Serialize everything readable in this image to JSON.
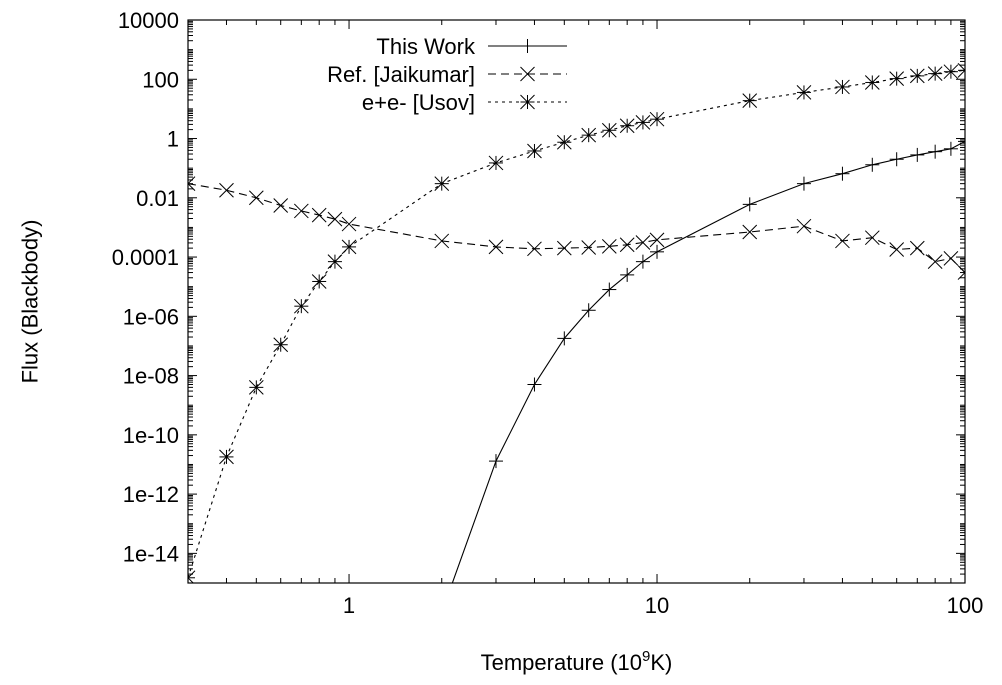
{
  "chart_data": {
    "type": "line",
    "xscale": "log",
    "yscale": "log",
    "xlim": [
      0.3,
      100
    ],
    "ylim": [
      1e-15,
      10000
    ],
    "xlabel": {
      "prefix": "Temperature (10",
      "sup": "9",
      "suffix": "K)"
    },
    "ylabel": "Flux (Blackbody)",
    "grid": false,
    "legend_position": "top-left",
    "x_ticks": [
      {
        "value": 1,
        "label": "1"
      },
      {
        "value": 10,
        "label": "10"
      },
      {
        "value": 100,
        "label": "100"
      }
    ],
    "y_ticks": [
      {
        "value": 10000,
        "label": "10000"
      },
      {
        "value": 100,
        "label": "100"
      },
      {
        "value": 1,
        "label": "1"
      },
      {
        "value": 0.01,
        "label": "0.01"
      },
      {
        "value": 0.0001,
        "label": "0.0001"
      },
      {
        "value": 1e-06,
        "label": "1e-06"
      },
      {
        "value": 1e-08,
        "label": "1e-08"
      },
      {
        "value": 1e-10,
        "label": "1e-10"
      },
      {
        "value": 1e-12,
        "label": "1e-12"
      },
      {
        "value": 1e-14,
        "label": "1e-14"
      }
    ],
    "series": [
      {
        "name": "This Work",
        "marker": "plus",
        "dash": "solid",
        "x": [
          2,
          3,
          4,
          5,
          6,
          7,
          8,
          9,
          10,
          20,
          30,
          40,
          50,
          60,
          70,
          80,
          90,
          100
        ],
        "y": [
          1e-16,
          1.3e-11,
          5e-09,
          1.8e-07,
          1.6e-06,
          8e-06,
          2.5e-05,
          7e-05,
          0.00015,
          0.006,
          0.03,
          0.065,
          0.13,
          0.2,
          0.28,
          0.36,
          0.45,
          0.8
        ]
      },
      {
        "name": "Ref. [Jaikumar]",
        "marker": "cross",
        "dash": "dashed",
        "x": [
          0.3,
          0.4,
          0.5,
          0.6,
          0.7,
          0.8,
          0.9,
          1,
          2,
          3,
          4,
          5,
          6,
          7,
          8,
          9,
          10,
          20,
          30,
          40,
          50,
          60,
          70,
          80,
          90,
          100
        ],
        "y": [
          0.03,
          0.018,
          0.01,
          0.0055,
          0.0036,
          0.0026,
          0.0019,
          0.0013,
          0.00035,
          0.00022,
          0.00019,
          0.0002,
          0.00021,
          0.00023,
          0.00026,
          0.00031,
          0.00038,
          0.0007,
          0.0011,
          0.00035,
          0.00045,
          0.00018,
          0.0002,
          7e-05,
          9e-05,
          3e-05
        ]
      },
      {
        "name": "e+e- [Usov]",
        "marker": "star",
        "dash": "dotted",
        "x": [
          0.3,
          0.4,
          0.5,
          0.6,
          0.7,
          0.8,
          0.9,
          1,
          2,
          3,
          4,
          5,
          6,
          7,
          8,
          9,
          10,
          20,
          30,
          40,
          50,
          60,
          70,
          80,
          90,
          100
        ],
        "y": [
          1.5e-15,
          1.8e-11,
          4e-09,
          1.1e-07,
          2.2e-06,
          1.5e-05,
          7e-05,
          0.00022,
          0.03,
          0.15,
          0.38,
          0.75,
          1.3,
          1.9,
          2.7,
          3.5,
          4.5,
          19,
          36,
          55,
          78,
          105,
          130,
          155,
          180,
          200
        ]
      }
    ]
  }
}
